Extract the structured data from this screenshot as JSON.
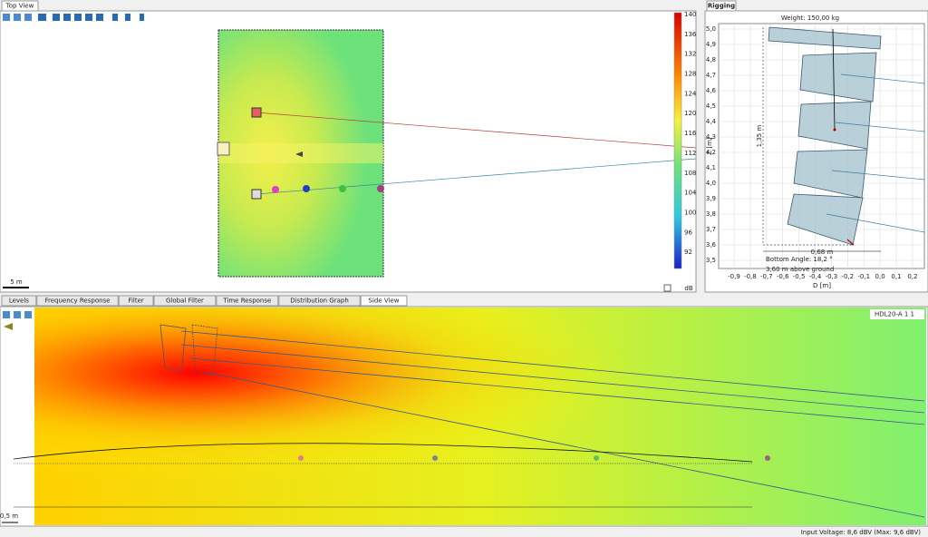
{
  "top_view": {
    "tab": "Top View",
    "scale": "5 m",
    "colorbar": {
      "ticks": [
        140,
        136,
        132,
        128,
        124,
        120,
        116,
        112,
        108,
        104,
        100,
        96,
        92
      ],
      "unit": "dB"
    }
  },
  "rigging": {
    "tab": "Rigging",
    "weight": "Weight: 150,00 kg",
    "z_label": "Z [m]",
    "z_ticks": [
      "5,0",
      "4,9",
      "4,8",
      "4,7",
      "4,6",
      "4,5",
      "4,4",
      "4,3",
      "4,2",
      "4,1",
      "4,0",
      "3,9",
      "3,8",
      "3,7",
      "3,6",
      "3,5"
    ],
    "d_label": "D [m]",
    "d_ticks": [
      "-0,9",
      "-0,8",
      "-0,7",
      "-0,6",
      "-0,5",
      "-0,4",
      "-0,3",
      "-0,2",
      "-0,1",
      "0,0",
      "0,1",
      "0,2"
    ],
    "height": "1,35 m",
    "depth": "0,68 m",
    "bottom_angle": "Bottom Angle: 18,2 °",
    "above_ground": "3,60 m above ground"
  },
  "bottom_tabs": [
    "Levels",
    "Frequency Response",
    "Filter",
    "Global Filter",
    "Time Response",
    "Distribution Graph",
    "Side View"
  ],
  "side_view": {
    "device": "HDL20-A 1 1",
    "scale": "0,5 m"
  },
  "status": "Input Voltage: 8,6 dBV (Max: 9,6 dBV)"
}
